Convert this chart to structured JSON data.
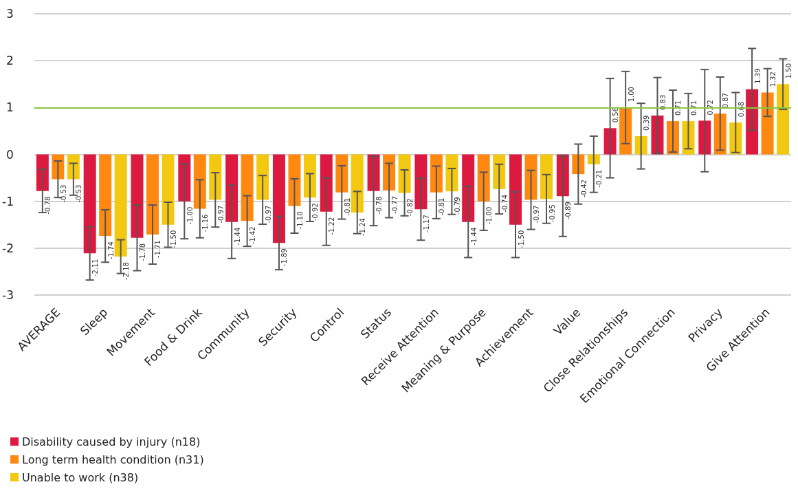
{
  "chart_data": {
    "type": "bar",
    "categories": [
      "AVERAGE",
      "Sleep",
      "Movement",
      "Food & Drink",
      "Community",
      "Security",
      "Control",
      "Status",
      "Receive Attention",
      "Meaning & Purpose",
      "Achievement",
      "Value",
      "Close Relationships",
      "Emotional Connection",
      "Privacy",
      "Give Attention"
    ],
    "series": [
      {
        "name": "Disability caused by injury (n18)",
        "color": "#dc1a40",
        "values": [
          -0.78,
          -2.11,
          -1.78,
          -1.0,
          -1.44,
          -1.89,
          -1.22,
          -0.78,
          -1.17,
          -1.44,
          -1.5,
          -0.89,
          0.56,
          0.83,
          0.72,
          1.39
        ],
        "value_labels": [
          "-0.78",
          "-2.11",
          "-1.78",
          "-1.00",
          "-1.44",
          "-1.89",
          "-1.22",
          "-0.78",
          "-1.17",
          "-1.44",
          "-1.50",
          "-0.89",
          "0.56",
          "0.83",
          "0.72",
          "1.39"
        ],
        "errors": [
          0.46,
          0.57,
          0.7,
          0.8,
          0.78,
          0.57,
          0.72,
          0.74,
          0.66,
          0.76,
          0.7,
          0.86,
          1.06,
          0.81,
          1.09,
          0.87
        ]
      },
      {
        "name": "Long term health condition (n31)",
        "color": "#ff8811",
        "values": [
          -0.53,
          -1.74,
          -1.71,
          -1.16,
          -1.42,
          -1.1,
          -0.81,
          -0.77,
          -0.81,
          -1.0,
          -0.97,
          -0.42,
          1.0,
          0.71,
          0.87,
          1.32
        ],
        "value_labels": [
          "-0.53",
          "-1.74",
          "-1.71",
          "-1.16",
          "-1.42",
          "-1.10",
          "-0.81",
          "-0.77",
          "-0.81",
          "-1.00",
          "-0.97",
          "-0.42",
          "1.00",
          "0.71",
          "0.87",
          "1.32"
        ],
        "errors": [
          0.39,
          0.56,
          0.63,
          0.62,
          0.54,
          0.58,
          0.57,
          0.58,
          0.56,
          0.62,
          0.63,
          0.64,
          0.77,
          0.66,
          0.78,
          0.51
        ]
      },
      {
        "name": "Unable to work (n38)",
        "color": "#f2c811",
        "values": [
          -0.53,
          -2.18,
          -1.5,
          -0.97,
          -0.97,
          -0.92,
          -1.24,
          -0.82,
          -0.79,
          -0.74,
          -0.95,
          -0.21,
          0.39,
          0.71,
          0.68,
          1.5
        ],
        "value_labels": [
          "-0.53",
          "-2.18",
          "-1.50",
          "-0.97",
          "-0.97",
          "-0.92",
          "-1.24",
          "-0.82",
          "-0.79",
          "-0.74",
          "-0.95",
          "-0.21",
          "0.39",
          "0.71",
          "0.68",
          "1.50"
        ],
        "errors": [
          0.34,
          0.36,
          0.48,
          0.58,
          0.52,
          0.51,
          0.45,
          0.49,
          0.49,
          0.53,
          0.52,
          0.6,
          0.7,
          0.59,
          0.64,
          0.54
        ]
      }
    ],
    "ylim": [
      -3,
      3
    ],
    "yticks": [
      -3,
      -2,
      -1,
      0,
      1,
      2,
      3
    ],
    "grid": "y",
    "legend": "bottom left",
    "ref_lines": [
      {
        "axis": "y",
        "value": 1,
        "color": "#8dc63f"
      }
    ]
  }
}
